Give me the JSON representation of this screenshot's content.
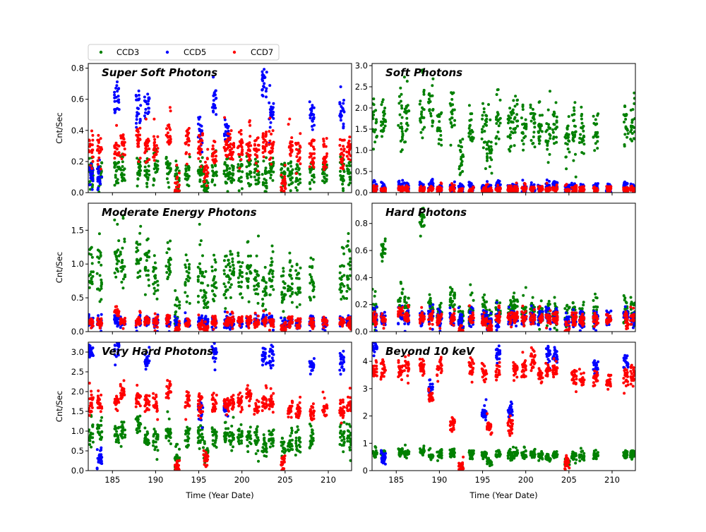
{
  "chart_data": {
    "type": "scatter",
    "xlabel": "Time (Year Date)",
    "ylabel": "Cnt/Sec",
    "xlim": [
      182.2,
      212.7
    ],
    "xticks": [
      185,
      190,
      195,
      200,
      205,
      210
    ],
    "legend": {
      "placement": "top-left, above plots",
      "entries": [
        "CCD3",
        "CCD5",
        "CCD7"
      ]
    },
    "series_colors": {
      "CCD3": "#008000",
      "CCD5": "#0000ff",
      "CCD7": "#ff0000"
    },
    "x": [
      182.5,
      183.5,
      185.5,
      186.2,
      188.0,
      189.0,
      190.0,
      191.5,
      192.5,
      193.7,
      195.2,
      195.8,
      196.8,
      198.2,
      198.8,
      199.8,
      200.8,
      201.7,
      202.6,
      203.4,
      204.8,
      205.6,
      206.5,
      208.1,
      209.6,
      211.6,
      212.4
    ],
    "panels": [
      {
        "title": "Super Soft Photons",
        "ylim": [
          0,
          0.83
        ],
        "yticks": [
          0.0,
          0.2,
          0.4,
          0.6,
          0.8
        ],
        "series": [
          {
            "name": "CCD3",
            "spread": 0.05,
            "values": [
              0.12,
              0.12,
              0.15,
              0.14,
              0.14,
              0.15,
              0.17,
              0.15,
              0.1,
              0.13,
              0.12,
              0.05,
              0.12,
              0.14,
              0.13,
              0.14,
              0.14,
              0.12,
              0.08,
              0.14,
              0.11,
              0.12,
              0.11,
              0.14,
              0.12,
              0.13,
              0.14
            ]
          },
          {
            "name": "CCD5",
            "spread": 0.05,
            "values": [
              0.12,
              0.11,
              0.6,
              null,
              0.55,
              0.56,
              null,
              null,
              null,
              null,
              0.4,
              null,
              0.58,
              0.38,
              null,
              null,
              null,
              null,
              0.7,
              0.5,
              null,
              null,
              null,
              0.5,
              null,
              0.52,
              null
            ]
          },
          {
            "name": "CCD7",
            "spread": 0.05,
            "values": [
              0.3,
              0.28,
              0.3,
              0.32,
              0.32,
              0.3,
              0.3,
              0.36,
              0.02,
              0.34,
              0.32,
              0.15,
              0.28,
              0.3,
              0.28,
              0.3,
              0.28,
              0.27,
              0.3,
              0.3,
              0.05,
              0.28,
              0.27,
              0.25,
              0.26,
              0.26,
              0.28
            ]
          }
        ]
      },
      {
        "title": "Soft Photons",
        "ylim": [
          0,
          3.05
        ],
        "yticks": [
          0.0,
          0.5,
          1.0,
          1.5,
          2.0,
          2.5,
          3.0
        ],
        "series": [
          {
            "name": "CCD3",
            "spread": 0.3,
            "values": [
              1.65,
              1.7,
              1.8,
              1.75,
              1.9,
              2.0,
              1.6,
              1.8,
              0.9,
              1.6,
              1.6,
              0.9,
              1.7,
              1.5,
              1.8,
              1.6,
              1.6,
              1.5,
              1.4,
              1.6,
              1.3,
              1.5,
              1.4,
              1.5,
              null,
              1.6,
              1.7
            ]
          },
          {
            "name": "CCD5",
            "spread": 0.05,
            "values": [
              0.15,
              0.12,
              0.15,
              0.12,
              0.15,
              0.2,
              0.1,
              0.12,
              0.1,
              0.12,
              0.12,
              0.1,
              0.15,
              0.12,
              0.12,
              0.1,
              0.1,
              0.1,
              0.15,
              0.2,
              0.1,
              0.12,
              0.1,
              0.15,
              0.1,
              0.15,
              0.12
            ]
          },
          {
            "name": "CCD7",
            "spread": 0.04,
            "values": [
              0.08,
              0.07,
              0.09,
              0.09,
              0.08,
              0.09,
              0.08,
              0.09,
              0.04,
              0.08,
              0.08,
              0.05,
              0.08,
              0.08,
              0.08,
              0.08,
              0.07,
              0.07,
              0.08,
              0.08,
              0.04,
              0.08,
              0.07,
              0.07,
              0.08,
              0.08,
              0.08
            ]
          }
        ]
      },
      {
        "title": "Moderate Energy Photons",
        "ylim": [
          0,
          1.9
        ],
        "yticks": [
          0.0,
          0.5,
          1.0,
          1.5
        ],
        "series": [
          {
            "name": "CCD3",
            "spread": 0.2,
            "values": [
              0.9,
              1.0,
              1.0,
              1.05,
              1.1,
              1.0,
              0.75,
              1.1,
              0.3,
              0.8,
              0.8,
              0.4,
              0.8,
              0.8,
              0.9,
              0.85,
              0.9,
              0.75,
              0.6,
              0.85,
              0.6,
              0.75,
              0.7,
              0.8,
              null,
              0.8,
              0.9
            ]
          },
          {
            "name": "CCD5",
            "spread": 0.04,
            "values": [
              0.15,
              0.14,
              0.15,
              0.14,
              0.15,
              0.16,
              0.14,
              0.15,
              0.12,
              0.15,
              0.14,
              0.12,
              0.15,
              0.14,
              0.15,
              0.14,
              0.14,
              0.14,
              0.18,
              0.16,
              0.12,
              0.14,
              0.13,
              0.15,
              0.14,
              0.15,
              0.15
            ]
          },
          {
            "name": "CCD7",
            "spread": 0.04,
            "values": [
              0.15,
              0.14,
              0.3,
              0.15,
              0.15,
              0.16,
              0.14,
              0.2,
              0.05,
              0.15,
              0.1,
              0.05,
              0.15,
              0.14,
              0.15,
              0.15,
              0.15,
              0.13,
              0.15,
              0.14,
              0.05,
              0.15,
              0.13,
              0.13,
              0.14,
              0.14,
              0.14
            ]
          }
        ]
      },
      {
        "title": "Hard Photons",
        "ylim": [
          0,
          0.95
        ],
        "yticks": [
          0.0,
          0.2,
          0.4,
          0.6,
          0.8
        ],
        "series": [
          {
            "name": "CCD3",
            "spread": 0.05,
            "values": [
              0.15,
              0.6,
              0.2,
              0.2,
              0.82,
              0.18,
              0.15,
              0.25,
              0.1,
              0.15,
              0.15,
              0.08,
              0.15,
              0.17,
              0.18,
              0.16,
              0.16,
              0.14,
              0.12,
              0.15,
              0.12,
              0.14,
              0.13,
              0.14,
              null,
              0.14,
              0.15
            ]
          },
          {
            "name": "CCD5",
            "spread": 0.03,
            "values": [
              0.1,
              0.09,
              0.12,
              0.1,
              0.1,
              0.12,
              0.1,
              0.1,
              0.08,
              0.1,
              0.1,
              0.08,
              0.1,
              0.1,
              0.1,
              0.1,
              0.1,
              0.1,
              0.12,
              0.12,
              0.08,
              0.1,
              0.09,
              0.1,
              0.1,
              0.12,
              0.1
            ]
          },
          {
            "name": "CCD7",
            "spread": 0.025,
            "values": [
              0.1,
              0.09,
              0.15,
              0.1,
              0.1,
              0.1,
              0.1,
              0.1,
              0.02,
              0.1,
              0.08,
              0.03,
              0.1,
              0.1,
              0.1,
              0.1,
              0.1,
              0.09,
              0.1,
              0.1,
              0.03,
              0.1,
              0.09,
              0.09,
              0.09,
              0.09,
              0.1
            ]
          }
        ]
      },
      {
        "title": "Very Hard Photons",
        "ylim": [
          0,
          3.25
        ],
        "yticks": [
          0.0,
          0.5,
          1.0,
          1.5,
          2.0,
          2.5,
          3.0
        ],
        "series": [
          {
            "name": "CCD3",
            "spread": 0.15,
            "values": [
              0.9,
              1.0,
              0.95,
              0.95,
              1.2,
              0.85,
              0.8,
              0.9,
              0.3,
              0.85,
              0.9,
              0.5,
              0.85,
              0.9,
              0.85,
              0.9,
              0.85,
              0.8,
              0.6,
              0.85,
              0.6,
              0.75,
              0.7,
              0.8,
              null,
              0.8,
              0.85
            ]
          },
          {
            "name": "CCD5",
            "spread": 0.12,
            "values": [
              3.0,
              0.3,
              3.1,
              null,
              null,
              2.8,
              null,
              null,
              null,
              null,
              1.5,
              null,
              3.0,
              1.6,
              null,
              null,
              null,
              null,
              2.9,
              2.85,
              null,
              null,
              null,
              2.65,
              null,
              2.8,
              null
            ]
          },
          {
            "name": "CCD7",
            "spread": 0.12,
            "values": [
              1.75,
              1.7,
              1.75,
              2.0,
              1.8,
              1.7,
              1.7,
              2.05,
              0.1,
              1.75,
              1.7,
              0.3,
              1.7,
              1.7,
              1.75,
              1.75,
              1.95,
              1.6,
              1.7,
              1.7,
              0.2,
              1.6,
              1.55,
              1.5,
              1.55,
              1.55,
              1.65
            ]
          }
        ]
      },
      {
        "title": "Beyond 10 keV",
        "ylim": [
          0,
          4.7
        ],
        "yticks": [
          0,
          1,
          2,
          3,
          4
        ],
        "series": [
          {
            "name": "CCD3",
            "spread": 0.08,
            "values": [
              0.6,
              0.6,
              0.65,
              0.65,
              0.7,
              0.5,
              0.6,
              0.65,
              0.1,
              0.6,
              0.6,
              0.3,
              0.6,
              0.6,
              0.6,
              0.6,
              0.6,
              0.55,
              0.45,
              0.6,
              0.3,
              0.55,
              0.5,
              0.55,
              null,
              0.6,
              0.6
            ]
          },
          {
            "name": "CCD5",
            "spread": 0.15,
            "values": [
              4.5,
              0.5,
              null,
              null,
              null,
              3.0,
              null,
              null,
              null,
              null,
              2.1,
              null,
              4.3,
              2.2,
              null,
              null,
              null,
              null,
              4.3,
              4.2,
              null,
              null,
              null,
              3.8,
              null,
              4.0,
              null
            ]
          },
          {
            "name": "CCD7",
            "spread": 0.15,
            "values": [
              3.7,
              3.65,
              3.65,
              3.8,
              3.75,
              2.7,
              3.8,
              1.7,
              0.1,
              3.8,
              3.55,
              1.6,
              3.6,
              1.6,
              3.75,
              3.75,
              4.1,
              3.5,
              3.7,
              3.65,
              0.3,
              3.4,
              3.4,
              3.35,
              3.3,
              3.4,
              3.55
            ]
          }
        ]
      }
    ]
  }
}
